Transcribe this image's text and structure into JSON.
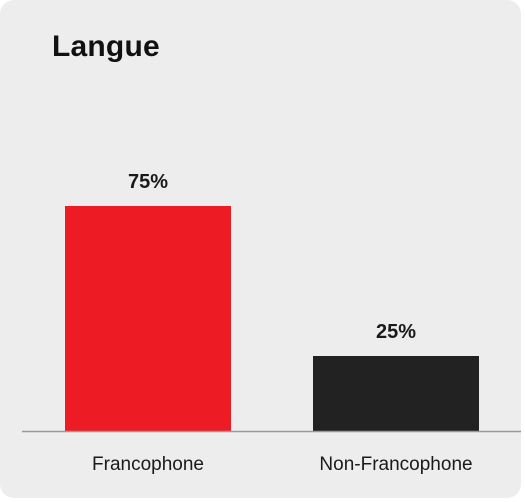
{
  "title": "Langue",
  "colors": {
    "background": "#ededed",
    "baseline": "#9a9a9a",
    "francophone": "#ed1c24",
    "non_francophone": "#222222"
  },
  "chart_data": {
    "type": "bar",
    "title": "Langue",
    "categories": [
      "Francophone",
      "Non-Francophone"
    ],
    "values": [
      75,
      25
    ],
    "value_labels": [
      "75%",
      "25%"
    ],
    "bar_colors": [
      "#ed1c24",
      "#222222"
    ],
    "ylim": [
      0,
      100
    ],
    "grid": false,
    "legend": "none",
    "xlabel": "",
    "ylabel": ""
  }
}
